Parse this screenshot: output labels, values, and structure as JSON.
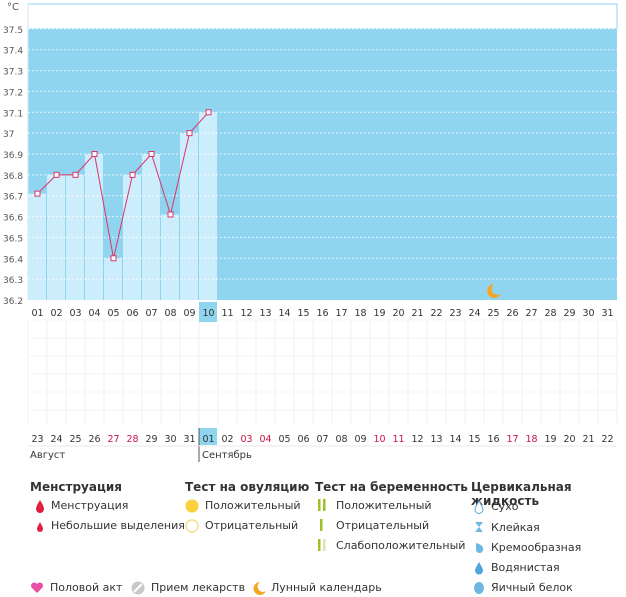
{
  "chart_data": {
    "type": "line",
    "unit": "°C",
    "ylim": [
      36.2,
      37.6
    ],
    "yticks": [
      "36.2",
      "36.3",
      "36.4",
      "36.5",
      "36.6",
      "36.7",
      "36.8",
      "36.9",
      "37",
      "37.1",
      "37.2",
      "37.3",
      "37.4",
      "37.5"
    ],
    "cycle_days": [
      "01",
      "02",
      "03",
      "04",
      "05",
      "06",
      "07",
      "08",
      "09",
      "10",
      "11",
      "12",
      "13",
      "14",
      "15",
      "16",
      "17",
      "18",
      "19",
      "20",
      "21",
      "22",
      "23",
      "24",
      "25",
      "26",
      "27",
      "28",
      "29",
      "30",
      "31"
    ],
    "today_day": "10",
    "series": [
      {
        "values": [
          36.71,
          36.8,
          36.8,
          36.9,
          36.4,
          36.8,
          36.9,
          36.61,
          37.0,
          37.1
        ]
      }
    ],
    "moon_day": "25",
    "calendar_dates": [
      "23",
      "24",
      "25",
      "26",
      "27",
      "28",
      "29",
      "30",
      "31",
      "01",
      "02",
      "03",
      "04",
      "05",
      "06",
      "07",
      "08",
      "09",
      "10",
      "11",
      "12",
      "13",
      "14",
      "15",
      "16",
      "17",
      "18",
      "19",
      "20",
      "21",
      "22"
    ],
    "calendar_weekend_indexes": [
      4,
      5,
      11,
      12,
      18,
      19,
      25,
      26
    ],
    "month_labels": [
      "Август",
      "Сентябрь"
    ],
    "month_change_index": 9,
    "colors": {
      "bg": "#8fd5f0",
      "bar": "#cceefc",
      "line": "#e0306a",
      "weekend": "#cc1144",
      "today": "#8fd5f0"
    }
  },
  "legend": {
    "menstruation": {
      "title": "Менструация",
      "items": [
        "Менструация",
        "Небольшие выделения"
      ]
    },
    "ovulation": {
      "title": "Тест на овуляцию",
      "items": [
        "Положительный",
        "Отрицательный"
      ]
    },
    "pregnancy": {
      "title": "Тест на беременность",
      "items": [
        "Положительный",
        "Отрицательный",
        "Слабоположительный"
      ]
    },
    "fluid": {
      "title": "Цервикальная жидкость",
      "items": [
        "Сухо",
        "Клейкая",
        "Кремообразная",
        "Водянистая",
        "Яичный белок"
      ]
    },
    "bottom": [
      "Половой акт",
      "Прием лекарств",
      "Лунный календарь"
    ]
  }
}
